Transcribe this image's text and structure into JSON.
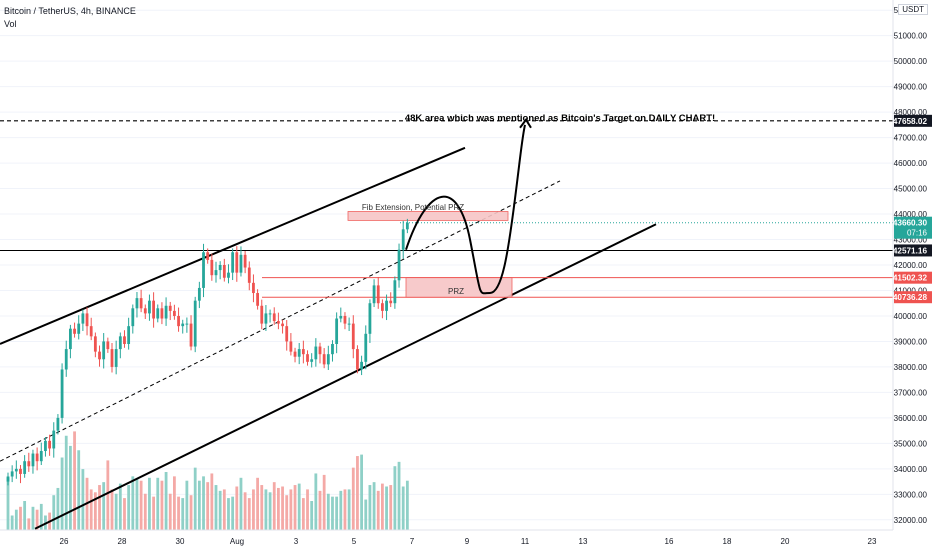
{
  "header": {
    "title": "Bitcoin / TetherUS, 4h, BINANCE",
    "vol_label": "Vol",
    "currency": "USDT"
  },
  "colors": {
    "up": "#26a69a",
    "down": "#ef5350",
    "vol_up": "#8fd0c7",
    "vol_down": "#f4a9a6",
    "annotation_box": "#f7c5c6",
    "line": "#000000"
  },
  "chart_data": {
    "type": "candlestick",
    "timeframe": "4h",
    "ylim": [
      31600,
      52400
    ],
    "yticks": [
      32000,
      33000,
      34000,
      35000,
      36000,
      37000,
      38000,
      39000,
      40000,
      41000,
      42000,
      43000,
      44000,
      45000,
      46000,
      47000,
      48000,
      49000,
      50000,
      51000,
      52000
    ],
    "ytick_labels": [
      "32000.00",
      "33000.00",
      "34000.00",
      "35000.00",
      "36000.00",
      "37000.00",
      "38000.00",
      "39000.00",
      "40000.00",
      "41000.00",
      "42000.00",
      "43000.00",
      "44000.00",
      "45000.00",
      "46000.00",
      "47000.00",
      "48000.00",
      "49000.00",
      "50000.00",
      "51000.00",
      "52000.00"
    ],
    "xticks": [
      "26",
      "28",
      "30",
      "Aug",
      "3",
      "5",
      "7",
      "9",
      "11",
      "13",
      "16",
      "18",
      "20",
      "23"
    ],
    "price_labels": [
      {
        "value": 47658.02,
        "label": "47658.02",
        "color": "#131722"
      },
      {
        "value": 43660.3,
        "label": "43660.30",
        "sublabel": "07:16",
        "color": "#26a69a"
      },
      {
        "value": 42571.16,
        "label": "42571.16",
        "color": "#131722"
      },
      {
        "value": 41502.32,
        "label": "41502.32",
        "color": "#ef5350"
      },
      {
        "value": 40736.28,
        "label": "40736.28",
        "color": "#ef5350"
      }
    ],
    "horizontal_levels": [
      {
        "value": 47658.02,
        "style": "dashed"
      },
      {
        "value": 42571.16,
        "style": "solid"
      },
      {
        "value": 41502.32,
        "style": "solid-red"
      },
      {
        "value": 40736.28,
        "style": "solid-red"
      },
      {
        "value": 43660.3,
        "style": "dotted-teal"
      }
    ],
    "annotations": {
      "target_text": "48K area which was mentioned as Bitcoin's Target on DAILY CHART!",
      "fib_text": "Fib Extension, Potential PRZ",
      "prz_text": "PRZ"
    },
    "fib_zone": [
      43750,
      44100
    ],
    "prz_zone": [
      40736.28,
      41502.32
    ],
    "closes": [
      33700,
      33900,
      34000,
      33800,
      34300,
      34100,
      34600,
      34300,
      34700,
      35100,
      34800,
      35500,
      36000,
      37900,
      38700,
      39500,
      39300,
      39700,
      40100,
      39600,
      39200,
      38600,
      38300,
      39000,
      38700,
      38000,
      38700,
      39200,
      38900,
      39600,
      40300,
      40700,
      40300,
      40100,
      40600,
      39900,
      40300,
      39900,
      40400,
      40200,
      40000,
      39600,
      39700,
      39700,
      38800,
      40600,
      41100,
      42500,
      42200,
      41600,
      41800,
      42000,
      41500,
      41700,
      42500,
      41700,
      42400,
      41900,
      41300,
      40900,
      40400,
      39700,
      40100,
      40100,
      39800,
      39700,
      39600,
      39000,
      38600,
      38400,
      38700,
      38500,
      38200,
      38300,
      38800,
      38500,
      38100,
      38500,
      38900,
      39900,
      40000,
      39700,
      39700,
      38700,
      37900,
      38200,
      39300,
      40500,
      41200,
      40500,
      40200,
      40600,
      40500,
      41400,
      42600,
      43400,
      43660
    ],
    "volumes": [
      3.6,
      1.0,
      1.4,
      1.6,
      2.0,
      0.8,
      1.6,
      1.4,
      1.8,
      1.0,
      1.2,
      2.4,
      2.9,
      5.0,
      6.5,
      5.8,
      6.8,
      5.5,
      4.2,
      3.6,
      2.8,
      2.6,
      3.1,
      3.3,
      4.8,
      2.8,
      2.5,
      3.2,
      2.2,
      3.1,
      3.7,
      3.5,
      3.4,
      2.5,
      3.6,
      2.3,
      3.6,
      3.4,
      4.0,
      2.5,
      3.7,
      2.3,
      2.2,
      3.4,
      2.4,
      4.3,
      3.4,
      3.7,
      3.3,
      3.9,
      3.1,
      2.7,
      2.8,
      2.2,
      2.3,
      3.0,
      3.6,
      2.6,
      2.2,
      2.8,
      3.6,
      3.1,
      2.8,
      2.6,
      3.3,
      2.9,
      3.0,
      2.4,
      2.8,
      3.1,
      3.2,
      2.2,
      2.8,
      2.0,
      3.9,
      2.7,
      3.8,
      2.5,
      2.3,
      2.3,
      2.7,
      2.8,
      2.8,
      4.3,
      5.1,
      5.2,
      2.1,
      3.1,
      3.3,
      2.7,
      3.2,
      3.0,
      3.1,
      4.4,
      4.7,
      3.0,
      3.4
    ]
  }
}
